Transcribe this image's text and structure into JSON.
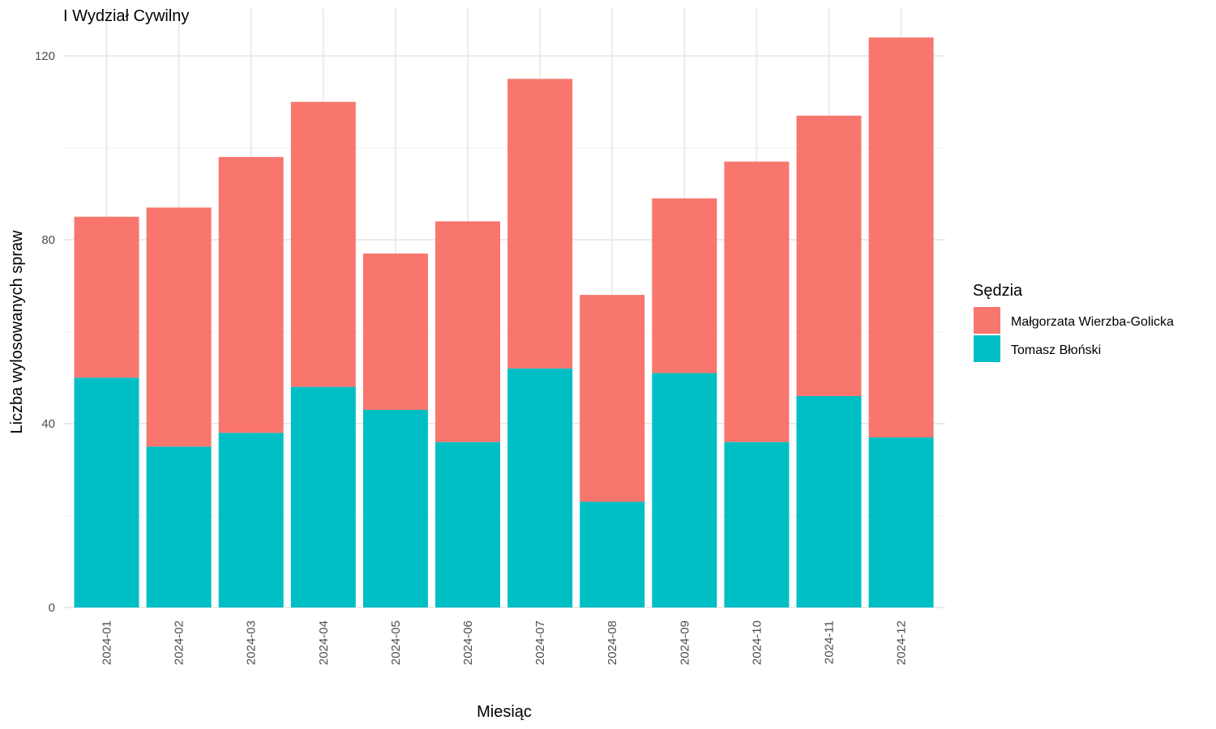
{
  "chart_data": {
    "type": "bar",
    "stacked": true,
    "title": "I Wydział Cywilny",
    "xlabel": "Miesiąc",
    "ylabel": "Liczba wylosowanych spraw",
    "ylim": [
      0,
      130
    ],
    "yticks": [
      0,
      40,
      80,
      120
    ],
    "grid": true,
    "legend_position": "right",
    "legend_title": "Sędzia",
    "categories": [
      "2024-01",
      "2024-02",
      "2024-03",
      "2024-04",
      "2024-05",
      "2024-06",
      "2024-07",
      "2024-08",
      "2024-09",
      "2024-10",
      "2024-11",
      "2024-12"
    ],
    "series": [
      {
        "name": "Tomasz Błoński",
        "color": "#00BFC4",
        "values": [
          50,
          35,
          38,
          48,
          43,
          36,
          52,
          23,
          51,
          36,
          46,
          37
        ]
      },
      {
        "name": "Małgorzata Wierzba-Golicka",
        "color": "#F8766D",
        "values": [
          35,
          52,
          60,
          62,
          34,
          48,
          63,
          45,
          38,
          61,
          61,
          87
        ]
      }
    ],
    "legend_order": [
      "Małgorzata Wierzba-Golicka",
      "Tomasz Błoński"
    ]
  }
}
